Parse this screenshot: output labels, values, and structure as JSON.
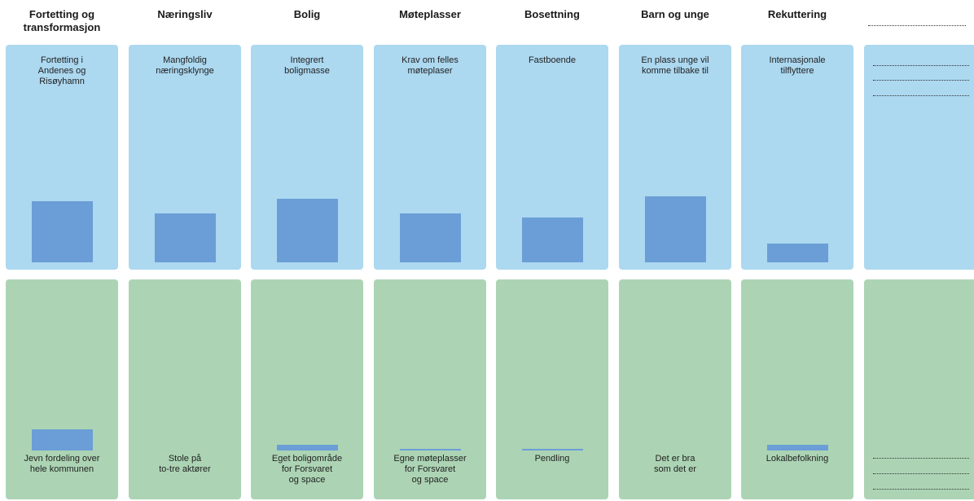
{
  "columns": [
    {
      "header": "Fortetting og\ntransformasjon",
      "top_text": "Fortetting i\nAndenes og\nRisøyhamn",
      "bottom_text": "Jevn fordeling over\nhele kommunen",
      "top_level": 0.29,
      "bottom_level": 0.11
    },
    {
      "header": "Næringsliv",
      "top_text": "Mangfoldig\nnæringsklynge",
      "bottom_text": "Stole på\nto-tre aktører",
      "top_level": 0.23,
      "bottom_level": 0
    },
    {
      "header": "Bolig",
      "top_text": "Integrert\nboligmasse",
      "bottom_text": "Eget boligområde\nfor Forsvaret\nog space",
      "top_level": 0.3,
      "bottom_level": 0.03
    },
    {
      "header": "Møteplasser",
      "top_text": "Krav om felles\nmøteplaser",
      "bottom_text": "Egne møteplasser\nfor Forsvaret\nog space",
      "top_level": 0.23,
      "bottom_level": 0.01
    },
    {
      "header": "Bosettning",
      "top_text": "Fastboende",
      "bottom_text": "Pendling",
      "top_level": 0.21,
      "bottom_level": 0.01
    },
    {
      "header": "Barn og unge",
      "top_text": "En plass unge vil\nkomme tilbake til",
      "bottom_text": "Det er bra\nsom det er",
      "top_level": 0.31,
      "bottom_level": 0
    },
    {
      "header": "Rekuttering",
      "top_text": "Internasjonale\ntilflyttere",
      "bottom_text": "Lokalbefolkning",
      "top_level": 0.09,
      "bottom_level": 0.03
    }
  ]
}
